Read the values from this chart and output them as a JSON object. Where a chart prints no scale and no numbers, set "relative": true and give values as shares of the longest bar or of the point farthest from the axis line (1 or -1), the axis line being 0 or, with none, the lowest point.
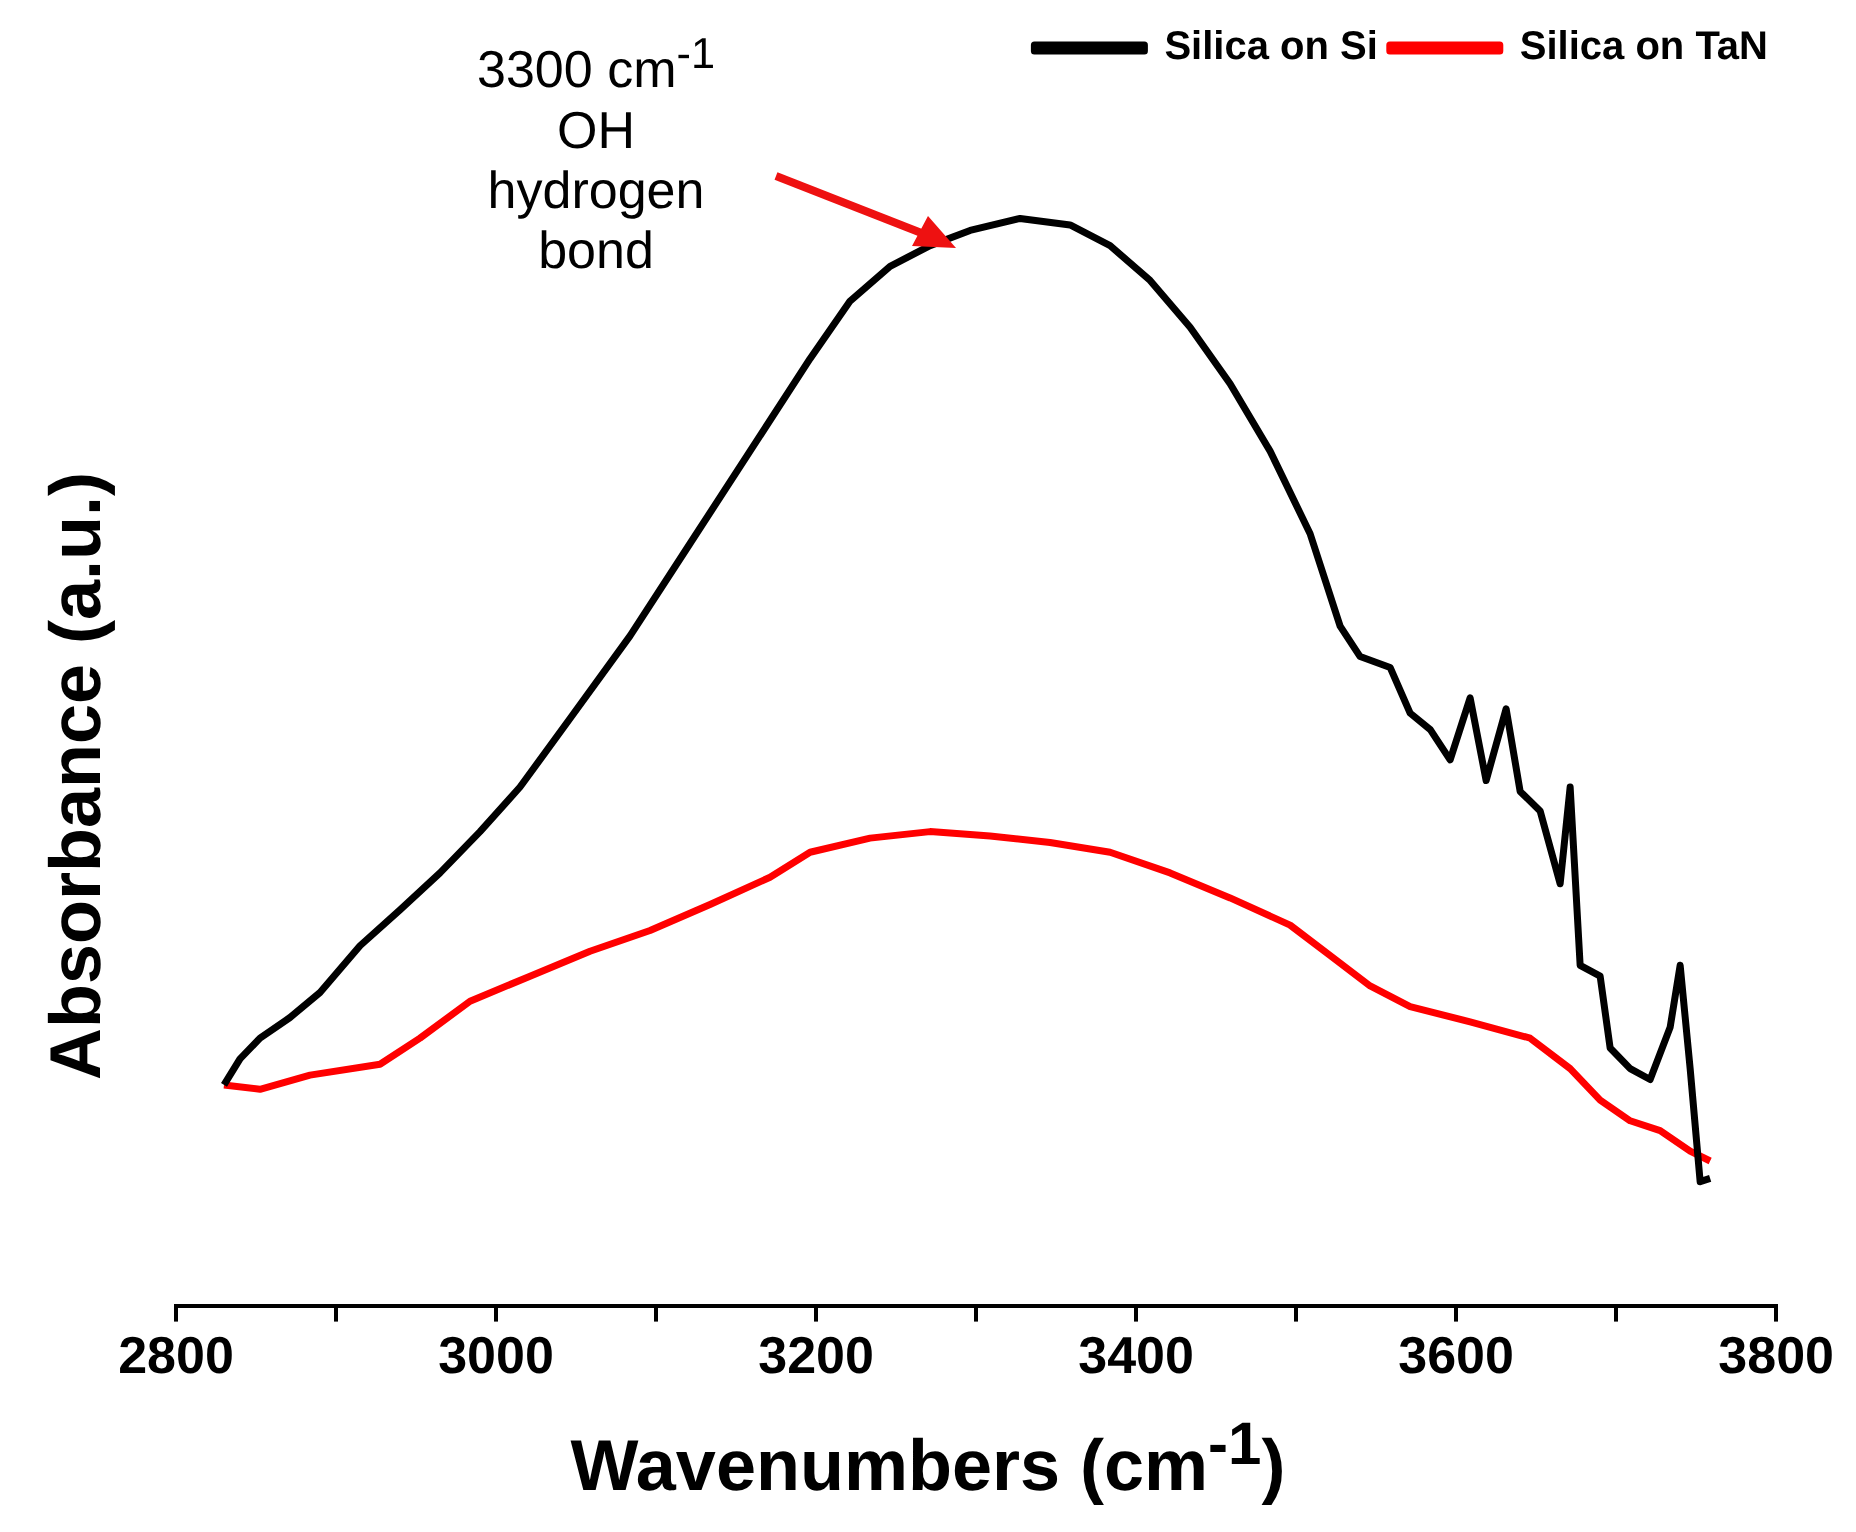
{
  "chart_data": {
    "type": "line",
    "xlabel": "Wavenumbers (cm$^{-1}$)",
    "ylabel": "Absorbance (a.u.)",
    "relative": true,
    "xlim": [
      2800,
      3800
    ],
    "xticks": [
      2800,
      {
        "value": 2900,
        "label": null
      },
      3000,
      {
        "value": 3100,
        "label": null
      },
      3200,
      {
        "value": 3300,
        "label": null
      },
      3400,
      {
        "value": 3500,
        "label": null
      },
      3600,
      {
        "value": 3700,
        "label": null
      },
      3800
    ],
    "grid": false,
    "legend": "top right",
    "marker": "none",
    "line_style": "solid",
    "annotations": [
      "3300 cm$^{-1}$ OH hydrogen bond"
    ],
    "series": [
      {
        "name": "Silica on Si",
        "color": "#000000",
        "x": [
          2830,
          2840,
          2852.5,
          2871.25,
          2890,
          2915,
          2940,
          2965,
          2990,
          3015,
          3046.25,
          3083.75,
          3121.25,
          3158.75,
          3196.25,
          3221.25,
          3246.25,
          3271.25,
          3296.25,
          3327.5,
          3358.75,
          3383.75,
          3408.75,
          3433.75,
          3458.75,
          3483.75,
          3508.75,
          3527.5,
          3540,
          3558.75,
          3571.25,
          3583.75,
          3596.25,
          3608.75,
          3618.75,
          3631.25,
          3640,
          3652.5,
          3665,
          3671.25,
          3677.5,
          3690,
          3696.25,
          3708.75,
          3721.25,
          3733.75,
          3740,
          3746.25,
          3752.5,
          3758.75
        ],
        "values": [
          0.203,
          0.227,
          0.246,
          0.265,
          0.288,
          0.331,
          0.364,
          0.398,
          0.436,
          0.477,
          0.54,
          0.616,
          0.701,
          0.786,
          0.871,
          0.924,
          0.956,
          0.975,
          0.989,
          1,
          0.994,
          0.975,
          0.943,
          0.9,
          0.848,
          0.786,
          0.71,
          0.625,
          0.597,
          0.587,
          0.545,
          0.53,
          0.502,
          0.559,
          0.483,
          0.549,
          0.473,
          0.455,
          0.388,
          0.477,
          0.313,
          0.303,
          0.237,
          0.218,
          0.208,
          0.256,
          0.313,
          0.218,
          0.114,
          0.117
        ]
      },
      {
        "name": "Silica on TaN",
        "color": "#ff0000",
        "x": [
          2830,
          2852.5,
          2883.75,
          2927.5,
          2952.5,
          2983.75,
          3021.25,
          3058.75,
          3096.25,
          3133.75,
          3171.25,
          3196.25,
          3233.75,
          3271.25,
          3308.75,
          3346.25,
          3383.75,
          3421.25,
          3458.75,
          3496.25,
          3521.25,
          3546.25,
          3571.25,
          3608.75,
          3646.25,
          3671.25,
          3690,
          3708.75,
          3727.5,
          3746.25,
          3758.75
        ],
        "values": [
          0.203,
          0.199,
          0.212,
          0.222,
          0.246,
          0.28,
          0.303,
          0.326,
          0.345,
          0.369,
          0.394,
          0.417,
          0.43,
          0.436,
          0.432,
          0.426,
          0.417,
          0.398,
          0.375,
          0.35,
          0.322,
          0.294,
          0.275,
          0.261,
          0.246,
          0.218,
          0.189,
          0.17,
          0.161,
          0.142,
          0.133
        ]
      }
    ]
  }
}
